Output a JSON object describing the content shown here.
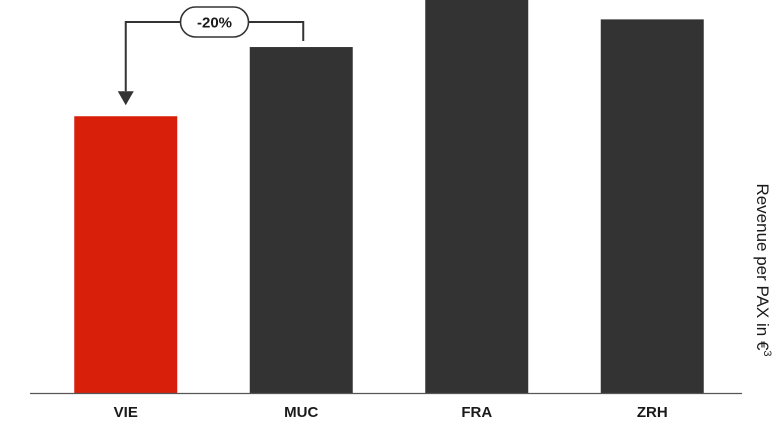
{
  "chart_data": {
    "type": "bar",
    "categories": [
      "VIE",
      "MUC",
      "FRA",
      "ZRH"
    ],
    "values": [
      100,
      125,
      142,
      135
    ],
    "colors": [
      "#d71f0a",
      "#333333",
      "#333333",
      "#333333"
    ],
    "title": "",
    "xlabel": "",
    "ylabel": "Revenue per PAX in €",
    "ylabel_superscript": "3",
    "ylim": [
      0,
      142
    ],
    "grid": false,
    "legend": "none",
    "annotation": {
      "text": "-20%",
      "from": "MUC",
      "to": "VIE"
    }
  }
}
